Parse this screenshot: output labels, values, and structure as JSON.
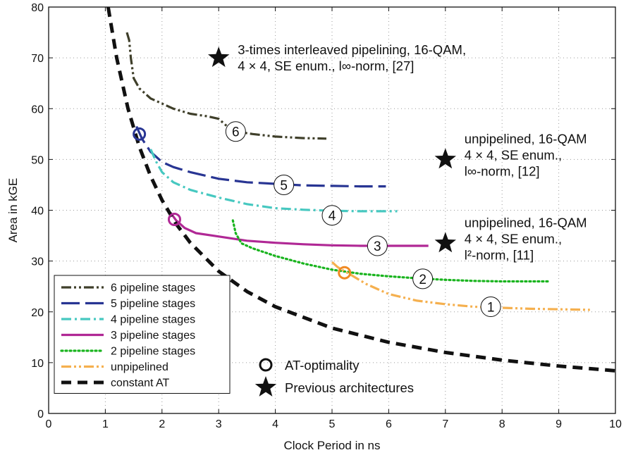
{
  "chart_data": {
    "type": "line",
    "title": "",
    "xlabel": "Clock Period in ns",
    "ylabel": "Area in kGE",
    "xlim": [
      0,
      10
    ],
    "ylim": [
      0,
      80
    ],
    "x_ticks": [
      0,
      1,
      2,
      3,
      4,
      5,
      6,
      7,
      8,
      9,
      10
    ],
    "y_ticks": [
      0,
      10,
      20,
      30,
      40,
      50,
      60,
      70,
      80
    ],
    "grid": "dotted",
    "legend_position": "bottom-left",
    "series": [
      {
        "name": "6 pipeline stages",
        "color": "#3f3f2a",
        "dash": "dashdotdot",
        "label": "6",
        "points": [
          [
            1.38,
            75
          ],
          [
            1.42,
            73.5
          ],
          [
            1.45,
            70
          ],
          [
            1.5,
            66
          ],
          [
            1.6,
            64
          ],
          [
            1.8,
            62
          ],
          [
            2.2,
            60
          ],
          [
            2.5,
            59
          ],
          [
            2.8,
            58.5
          ],
          [
            3.0,
            58
          ],
          [
            3.15,
            56.5
          ],
          [
            3.3,
            55.5
          ],
          [
            3.6,
            55
          ],
          [
            4.0,
            54.5
          ],
          [
            4.5,
            54.2
          ],
          [
            4.9,
            54.1
          ]
        ],
        "label_at": [
          3.3,
          55.5
        ]
      },
      {
        "name": "5 pipeline stages",
        "color": "#283593",
        "dash": "longdash",
        "label": "5",
        "points": [
          [
            1.55,
            56.5
          ],
          [
            1.65,
            54
          ],
          [
            1.8,
            51.5
          ],
          [
            2.0,
            49.5
          ],
          [
            2.2,
            48.5
          ],
          [
            2.5,
            47.5
          ],
          [
            3.0,
            46.2
          ],
          [
            3.5,
            45.5
          ],
          [
            4.0,
            45.2
          ],
          [
            4.5,
            44.9
          ],
          [
            5.0,
            44.8
          ],
          [
            5.5,
            44.7
          ],
          [
            5.95,
            44.7
          ]
        ],
        "label_at": [
          4.15,
          45.0
        ]
      },
      {
        "name": "4 pipeline stages",
        "color": "#46c8c0",
        "dash": "dashdot",
        "label": "4",
        "points": [
          [
            1.8,
            52
          ],
          [
            1.9,
            49.5
          ],
          [
            2.0,
            47.5
          ],
          [
            2.2,
            45.5
          ],
          [
            2.5,
            44
          ],
          [
            3.0,
            42.5
          ],
          [
            3.5,
            41.2
          ],
          [
            4.0,
            40.4
          ],
          [
            4.5,
            40.1
          ],
          [
            5.0,
            39.9
          ],
          [
            5.5,
            39.8
          ],
          [
            6.15,
            39.8
          ]
        ],
        "label_at": [
          5.0,
          39.0
        ]
      },
      {
        "name": "3 pipeline stages",
        "color": "#b02895",
        "dash": "solid",
        "label": "3",
        "points": [
          [
            2.15,
            39.5
          ],
          [
            2.25,
            38
          ],
          [
            2.4,
            36.5
          ],
          [
            2.6,
            35.5
          ],
          [
            2.9,
            35
          ],
          [
            3.2,
            34.5
          ],
          [
            3.5,
            34
          ],
          [
            4.0,
            33.6
          ],
          [
            4.5,
            33.3
          ],
          [
            5.0,
            33.1
          ],
          [
            5.5,
            33.0
          ],
          [
            6.0,
            33.0
          ],
          [
            6.7,
            33.0
          ]
        ],
        "label_at": [
          5.8,
          33.0
        ]
      },
      {
        "name": "2 pipeline stages",
        "color": "#19b41e",
        "dash": "dotted",
        "label": "2",
        "points": [
          [
            3.25,
            38
          ],
          [
            3.3,
            35.5
          ],
          [
            3.4,
            33.5
          ],
          [
            3.6,
            32.5
          ],
          [
            4.0,
            31
          ],
          [
            4.5,
            29.5
          ],
          [
            5.0,
            28.3
          ],
          [
            5.5,
            27.5
          ],
          [
            6.0,
            27.0
          ],
          [
            6.5,
            26.6
          ],
          [
            7.0,
            26.3
          ],
          [
            7.5,
            26.1
          ],
          [
            8.0,
            26.0
          ],
          [
            8.85,
            26.0
          ]
        ],
        "label_at": [
          6.6,
          26.5
        ]
      },
      {
        "name": "unpipelined",
        "color": "#f5b04f",
        "dash": "dashdotdot",
        "label": "1",
        "points": [
          [
            5.0,
            29.8
          ],
          [
            5.1,
            28.8
          ],
          [
            5.3,
            27.5
          ],
          [
            5.6,
            25.5
          ],
          [
            6.0,
            23.5
          ],
          [
            6.5,
            22.2
          ],
          [
            7.0,
            21.5
          ],
          [
            7.5,
            21.0
          ],
          [
            8.0,
            20.8
          ],
          [
            8.5,
            20.6
          ],
          [
            9.0,
            20.5
          ],
          [
            9.55,
            20.4
          ]
        ],
        "label_at": [
          7.8,
          21.0
        ]
      },
      {
        "name": "constant AT",
        "color": "#111111",
        "dash": "bigdash",
        "label": "",
        "points": [
          [
            1.05,
            80
          ],
          [
            1.2,
            70
          ],
          [
            1.4,
            60
          ],
          [
            1.6,
            52.5
          ],
          [
            1.8,
            46.7
          ],
          [
            2.0,
            42
          ],
          [
            2.25,
            37.3
          ],
          [
            2.5,
            33.6
          ],
          [
            3.0,
            28
          ],
          [
            3.5,
            24
          ],
          [
            4.0,
            21
          ],
          [
            5.0,
            16.8
          ],
          [
            6.0,
            14
          ],
          [
            7.0,
            12
          ],
          [
            8.0,
            10.5
          ],
          [
            9.0,
            9.33
          ],
          [
            10.0,
            8.4
          ]
        ],
        "label_at": null
      }
    ],
    "at_optimal": [
      {
        "series": "5 pipeline stages",
        "x": 1.6,
        "y": 55.0,
        "color": "#283593"
      },
      {
        "series": "3 pipeline stages",
        "x": 2.22,
        "y": 38.2,
        "color": "#b02895"
      },
      {
        "series": "unpipelined",
        "x": 5.22,
        "y": 27.7,
        "color": "#f08a24"
      }
    ],
    "previous_architectures": [
      {
        "x": 3.0,
        "y": 70,
        "lines": [
          "3-times interleaved pipelining, 16-QAM,",
          "4 × 4, SE enum., l∞-norm, [27]"
        ]
      },
      {
        "x": 7.0,
        "y": 50,
        "lines": [
          "unpipelined, 16-QAM",
          "4 × 4, SE enum.,",
          "l∞-norm, [12]"
        ]
      },
      {
        "x": 7.0,
        "y": 33.5,
        "lines": [
          "unpipelined, 16-QAM",
          "4 × 4, SE enum.,",
          "l²-norm, [11]"
        ]
      }
    ],
    "symbol_legend": [
      {
        "symbol": "circle",
        "label": "AT-optimality"
      },
      {
        "symbol": "star",
        "label": "Previous architectures"
      }
    ]
  }
}
